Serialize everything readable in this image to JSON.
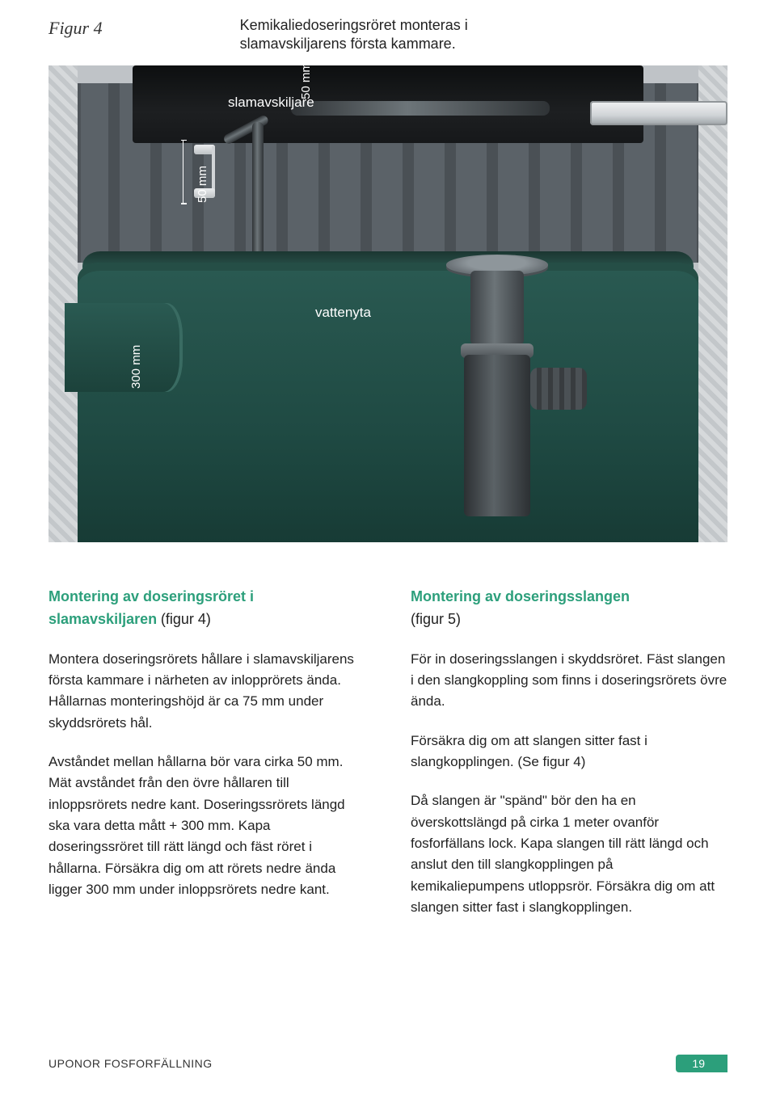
{
  "figure_label": "Figur 4",
  "caption": "Kemikaliedoseringsröret monteras i slamavskiljarens första kammare.",
  "diagram": {
    "top_label": "slamavskiljare",
    "water_label": "vattenyta",
    "dim_50_a": "50 mm",
    "dim_50_b": "50 mm",
    "dim_300": "300 mm",
    "colors": {
      "tank": "#2a5a52",
      "lid": "#111315",
      "metal": "#6c7478",
      "stone": "#cfd2d5",
      "bg": "#bfc3c7"
    }
  },
  "left": {
    "heading": "Montering av doseringsröret i slamavskiljaren",
    "heading_sub": "(figur 4)",
    "p1": "Montera doseringsrörets hållare i slamavskiljarens första kammare i närheten av inlopprörets ända. Hållarnas monteringshöjd är ca 75 mm under skyddsrörets hål.",
    "p2": "Avståndet mellan hållarna bör vara cirka 50 mm. Mät avståndet från den övre hållaren till inloppsrörets nedre kant. Doseringssrörets längd ska vara detta mått + 300 mm. Kapa doseringssröret till rätt längd och fäst röret i hållarna. Försäkra dig om att rörets nedre ända ligger 300 mm under  inloppsrörets nedre kant."
  },
  "right": {
    "heading": "Montering av doseringsslangen",
    "heading_sub": "(figur 5)",
    "p1": "För in doseringsslangen i skyddsröret. Fäst slangen i den slangkoppling som finns i doseringsrörets övre ända.",
    "p2": "Försäkra dig om att slangen sitter fast i slangkopplingen. (Se figur 4)",
    "p3": "Då slangen är \"spänd\" bör den ha en överskottslängd på cirka 1 meter ovanför fosforfällans lock. Kapa slangen till rätt längd och anslut den till slangkopplingen på kemikaliepumpens utloppsrör. Försäkra dig om att slangen sitter fast i slangkopplingen."
  },
  "footer": {
    "brand": "UPONOR  FOSFORFÄLLNING",
    "page": "19"
  },
  "style": {
    "accent": "#2c9f7b",
    "body_fontsize": 17,
    "heading_fontsize": 18
  }
}
